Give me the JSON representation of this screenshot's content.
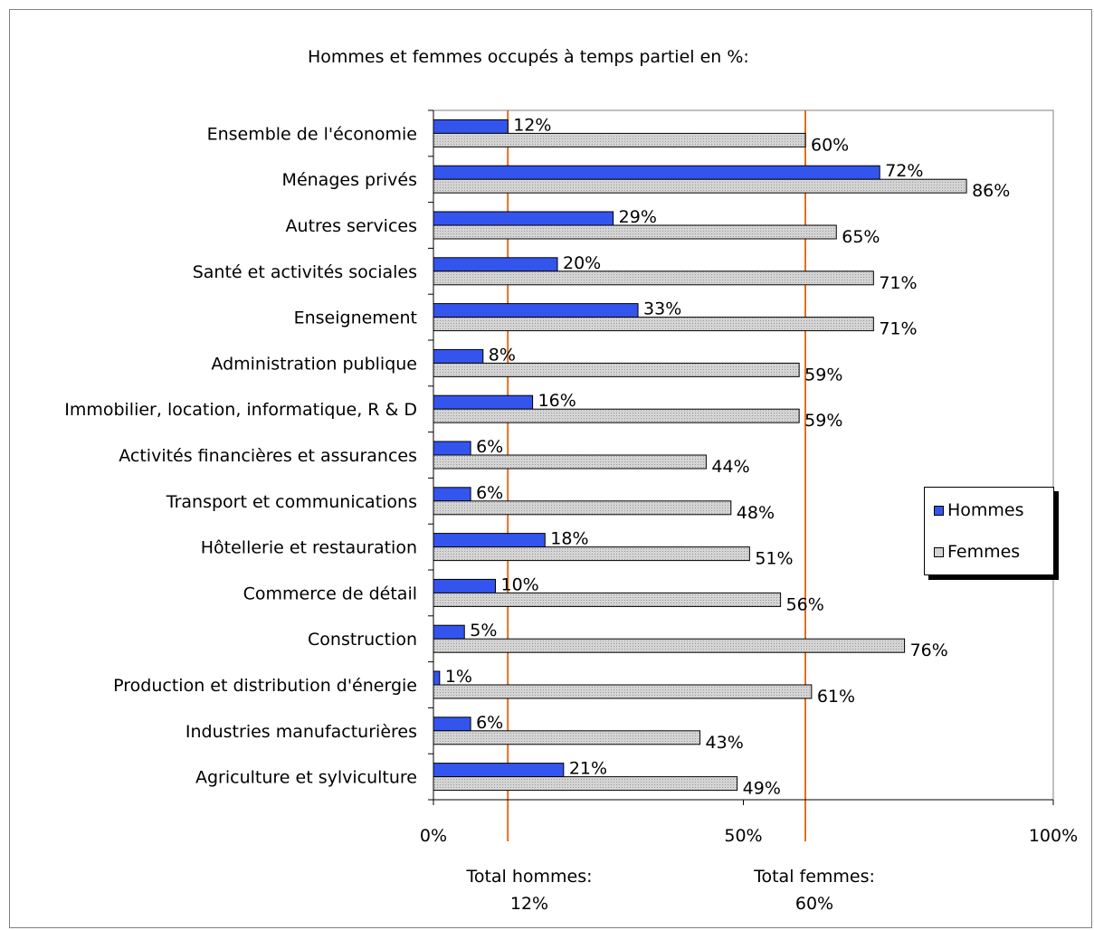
{
  "chart_data": {
    "type": "bar",
    "orientation": "horizontal",
    "title": "Hommes et femmes occupés à temps partiel en %:",
    "categories": [
      "Ensemble de l'économie",
      "Ménages privés",
      "Autres services",
      "Santé et activités sociales",
      "Enseignement",
      "Administration publique",
      "Immobilier, location, informatique, R & D",
      "Activités financières et assurances",
      "Transport et communications",
      "Hôtellerie et restauration",
      "Commerce de détail",
      "Construction",
      "Production et distribution d'énergie",
      "Industries manufacturières",
      "Agriculture et sylviculture"
    ],
    "series": [
      {
        "name": "Hommes",
        "color": "#3355ee",
        "values": [
          12,
          72,
          29,
          20,
          33,
          8,
          16,
          6,
          6,
          18,
          10,
          5,
          1,
          6,
          21
        ],
        "labels": [
          "12%",
          "72%",
          "29%",
          "20%",
          "33%",
          "8%",
          "16%",
          "6%",
          "6%",
          "18%",
          "10%",
          "5%",
          "1%",
          "6%",
          "21%"
        ]
      },
      {
        "name": "Femmes",
        "color": "#d4d4d4",
        "values": [
          60,
          86,
          65,
          71,
          71,
          59,
          59,
          44,
          48,
          51,
          56,
          76,
          61,
          43,
          49
        ],
        "labels": [
          "60%",
          "86%",
          "65%",
          "71%",
          "71%",
          "59%",
          "59%",
          "44%",
          "48%",
          "51%",
          "56%",
          "76%",
          "61%",
          "43%",
          "49%"
        ]
      }
    ],
    "xlim": [
      0,
      100
    ],
    "xticks": [
      0,
      50,
      100
    ],
    "xtick_labels": [
      "0%",
      "50%",
      "100%"
    ],
    "reference_lines": [
      {
        "value": 12,
        "color": "#e07020",
        "label_line1": "Total hommes:",
        "label_line2": "12%"
      },
      {
        "value": 60,
        "color": "#e07020",
        "label_line1": "Total femmes:",
        "label_line2": "60%"
      }
    ],
    "legend_position": "right",
    "grid": false
  }
}
